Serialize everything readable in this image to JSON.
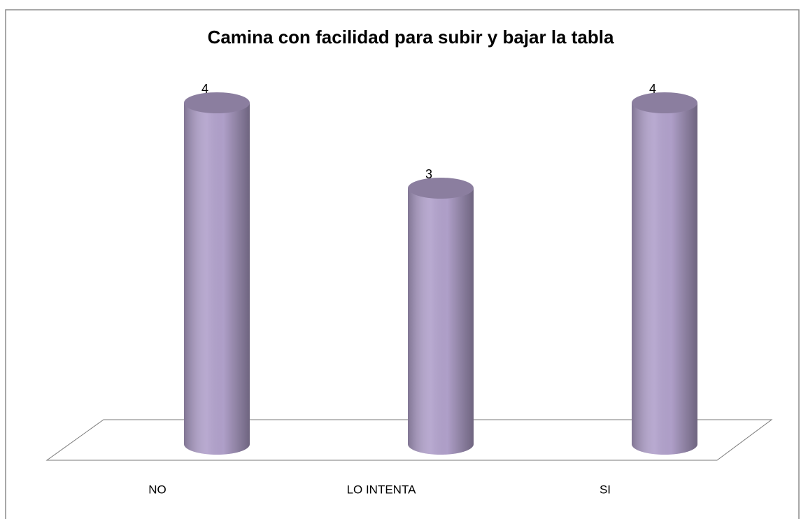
{
  "chart_data": {
    "type": "bar",
    "title": "Camina con facilidad para subir y bajar la tabla",
    "categories": [
      "NO",
      "LO INTENTA",
      "SI"
    ],
    "values": [
      4,
      3,
      4
    ],
    "color": "#b2a2cc"
  }
}
